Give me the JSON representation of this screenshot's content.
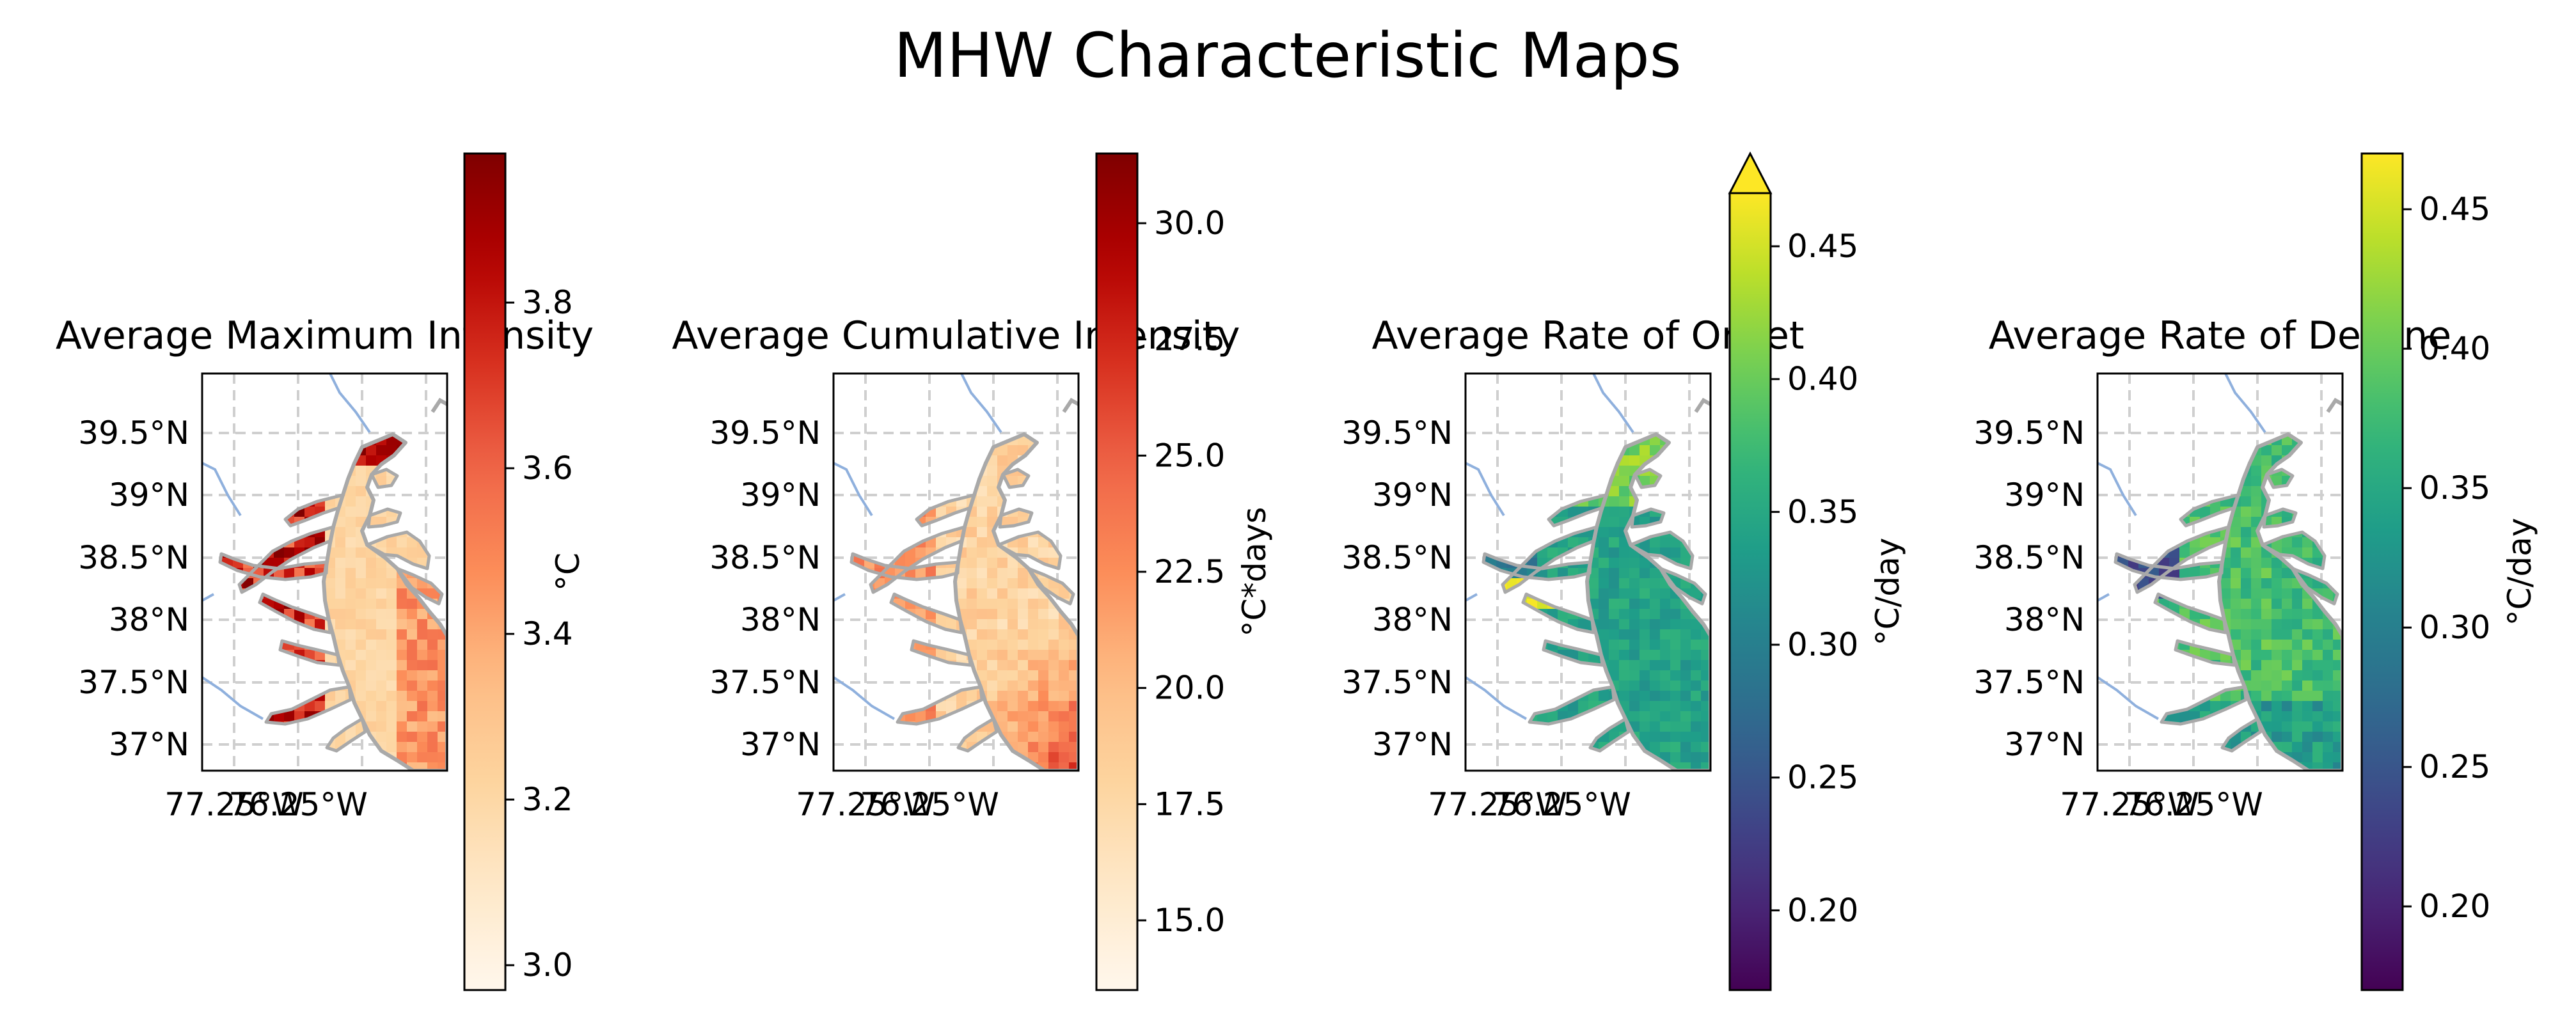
{
  "figure": {
    "title": "MHW Characteristic Maps"
  },
  "chart_data": [
    {
      "type": "heatmap",
      "title": "Average Maximum Intensity",
      "lat_ticks": [
        "39.5°N",
        "39°N",
        "38.5°N",
        "38°N",
        "37.5°N",
        "37°N"
      ],
      "lon_ticks": [
        "77.25°W",
        "76.25°W"
      ],
      "lat_range": [
        36.8,
        40.0
      ],
      "lon_range": [
        -77.7,
        -75.7
      ],
      "colorbar": {
        "label": "°C",
        "cmap": "OrRd",
        "vmin": 2.97,
        "vmax": 3.98,
        "ticks": [
          3.0,
          3.2,
          3.4,
          3.6,
          3.8
        ],
        "tick_labels": [
          "3.0",
          "3.2",
          "3.4",
          "3.6",
          "3.8"
        ],
        "extend": "neither"
      }
    },
    {
      "type": "heatmap",
      "title": "Average Cumulative Intensity",
      "lat_ticks": [
        "39.5°N",
        "39°N",
        "38.5°N",
        "38°N",
        "37.5°N",
        "37°N"
      ],
      "lon_ticks": [
        "77.25°W",
        "76.25°W"
      ],
      "lat_range": [
        36.8,
        40.0
      ],
      "lon_range": [
        -77.7,
        -75.7
      ],
      "colorbar": {
        "label": "°C*days",
        "cmap": "OrRd",
        "vmin": 13.5,
        "vmax": 31.5,
        "ticks": [
          15.0,
          17.5,
          20.0,
          22.5,
          25.0,
          27.5,
          30.0
        ],
        "tick_labels": [
          "15.0",
          "17.5",
          "20.0",
          "22.5",
          "25.0",
          "27.5",
          "30.0"
        ],
        "extend": "neither"
      }
    },
    {
      "type": "heatmap",
      "title": "Average Rate of Onset",
      "lat_ticks": [
        "39.5°N",
        "39°N",
        "38.5°N",
        "38°N",
        "37.5°N",
        "37°N"
      ],
      "lon_ticks": [
        "77.25°W",
        "76.25°W"
      ],
      "lat_range": [
        36.8,
        40.0
      ],
      "lon_range": [
        -77.7,
        -75.7
      ],
      "colorbar": {
        "label": "°C/day",
        "cmap": "viridis",
        "vmin": 0.17,
        "vmax": 0.47,
        "ticks": [
          0.2,
          0.25,
          0.3,
          0.35,
          0.4,
          0.45
        ],
        "tick_labels": [
          "0.20",
          "0.25",
          "0.30",
          "0.35",
          "0.40",
          "0.45"
        ],
        "extend": "max"
      }
    },
    {
      "type": "heatmap",
      "title": "Average Rate of Decline",
      "lat_ticks": [
        "39.5°N",
        "39°N",
        "38.5°N",
        "38°N",
        "37.5°N",
        "37°N"
      ],
      "lon_ticks": [
        "77.25°W",
        "76.25°W"
      ],
      "lat_range": [
        36.8,
        40.0
      ],
      "lon_range": [
        -77.7,
        -75.7
      ],
      "colorbar": {
        "label": "°C/day",
        "cmap": "viridis",
        "vmin": 0.17,
        "vmax": 0.47,
        "ticks": [
          0.2,
          0.25,
          0.3,
          0.35,
          0.4,
          0.45
        ],
        "tick_labels": [
          "0.20",
          "0.25",
          "0.30",
          "0.35",
          "0.40",
          "0.45"
        ],
        "extend": "neither"
      }
    }
  ]
}
